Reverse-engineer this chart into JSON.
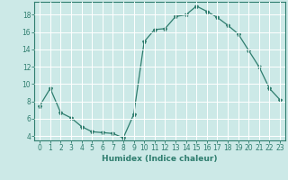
{
  "x": [
    0,
    1,
    2,
    3,
    4,
    5,
    6,
    7,
    8,
    9,
    10,
    11,
    12,
    13,
    14,
    15,
    16,
    17,
    18,
    19,
    20,
    21,
    22,
    23
  ],
  "y": [
    7.5,
    9.5,
    6.7,
    6.1,
    5.1,
    4.5,
    4.4,
    4.3,
    3.8,
    6.5,
    14.9,
    16.3,
    16.4,
    17.8,
    18.0,
    19.0,
    18.4,
    17.7,
    16.8,
    15.8,
    13.9,
    12.0,
    9.5,
    8.2
  ],
  "line_color": "#2e7d6e",
  "marker": "*",
  "marker_size": 3,
  "bg_color": "#cce9e7",
  "grid_color": "#ffffff",
  "axis_color": "#2e7d6e",
  "xlabel": "Humidex (Indice chaleur)",
  "xlim": [
    -0.5,
    23.5
  ],
  "ylim": [
    3.5,
    19.5
  ],
  "yticks": [
    4,
    6,
    8,
    10,
    12,
    14,
    16,
    18
  ],
  "xticks": [
    0,
    1,
    2,
    3,
    4,
    5,
    6,
    7,
    8,
    9,
    10,
    11,
    12,
    13,
    14,
    15,
    16,
    17,
    18,
    19,
    20,
    21,
    22,
    23
  ],
  "font_color": "#2e7d6e",
  "label_fontsize": 6.5,
  "tick_fontsize": 5.5
}
